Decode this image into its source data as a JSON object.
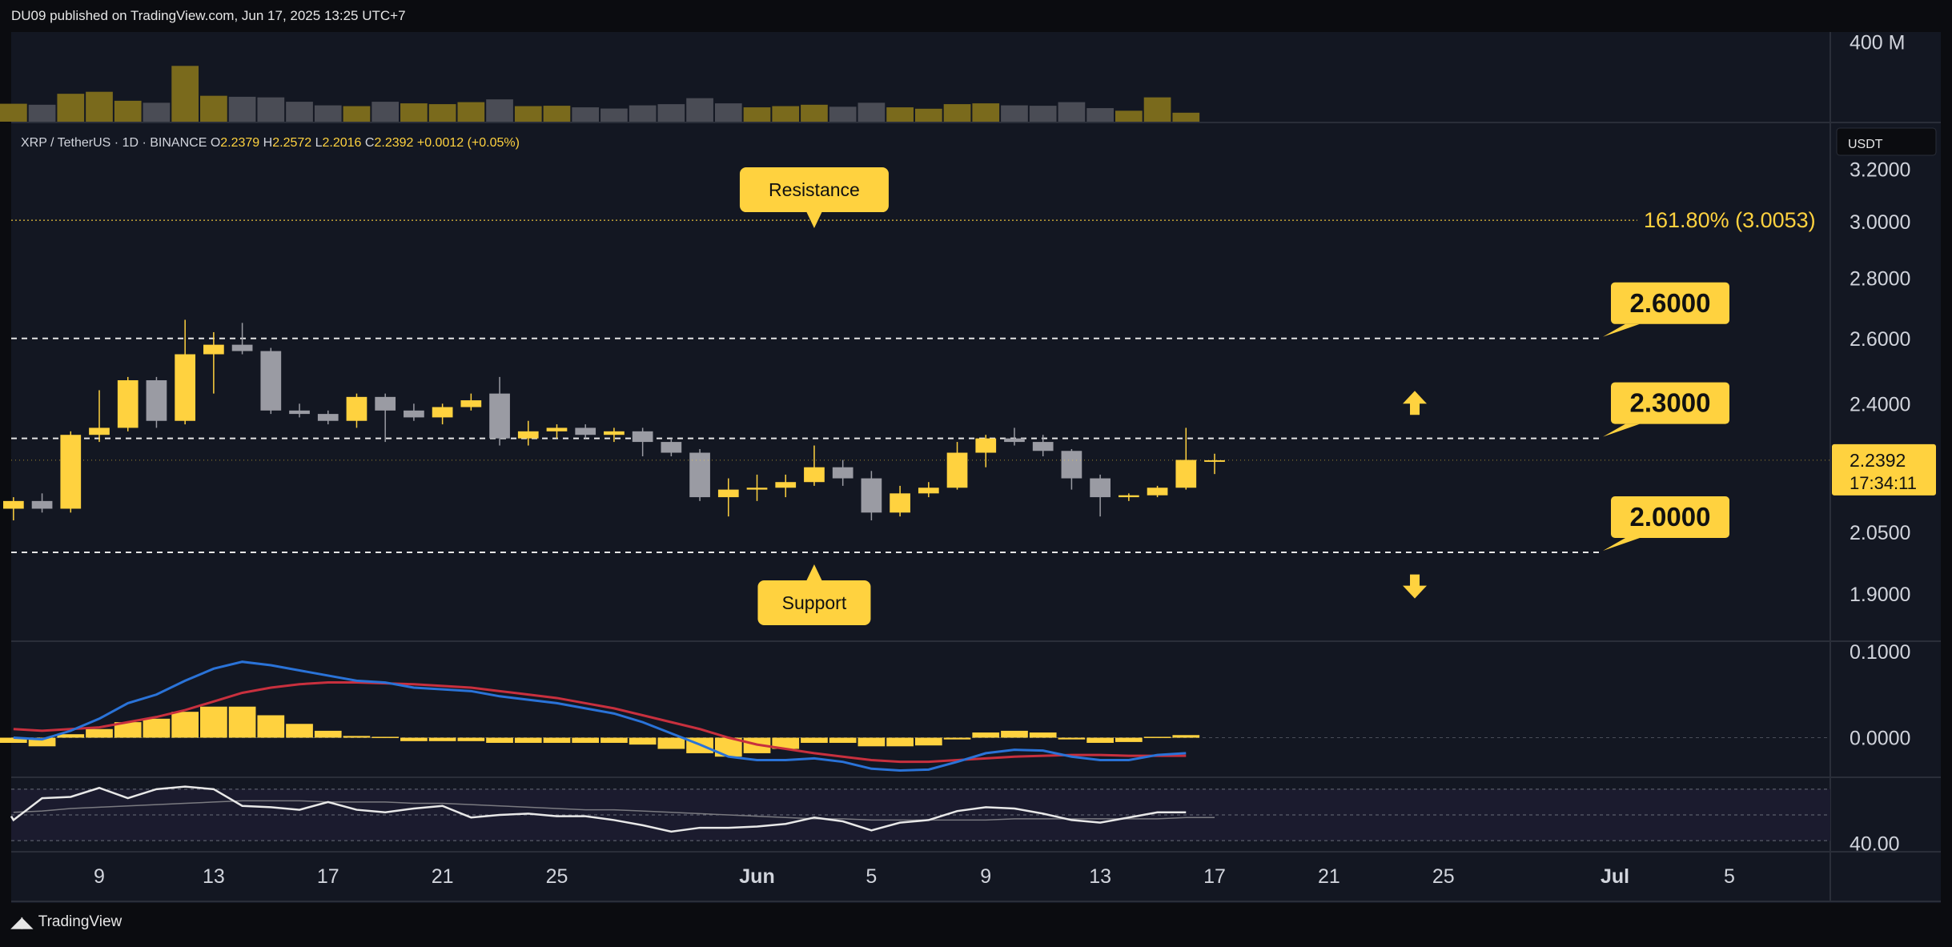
{
  "header": {
    "published": "DU09 published on TradingView.com, Jun 17, 2025 13:25 UTC+7"
  },
  "footer": {
    "brand": "TradingView",
    "logo_icon": "tradingview-logo-icon"
  },
  "colors": {
    "background": "#0b0c10",
    "panel": "#131722",
    "bull": "#ffd23f",
    "bear": "#9a9ba3",
    "volume_bull": "#7a6a1c",
    "volume_bear": "#4a4c55",
    "macd": "#2a73d8",
    "signal": "#c8303e",
    "rsi": "#e8e8e8",
    "rsi_ma": "#7a7a80",
    "rsi_band": "#1b1b2e",
    "label_bg": "#ffd23f"
  },
  "chart_data": [
    {
      "type": "candlestick",
      "symbol_line": {
        "pair": "XRP / TetherUS · 1D · BINANCE",
        "o_label": "O",
        "o": "2.2379",
        "h_label": "H",
        "h": "2.2572",
        "l_label": "L",
        "l": "2.2016",
        "c_label": "C",
        "c": "2.2392",
        "change": "+0.0012 (+0.05%)"
      },
      "currency_badge": "USDT",
      "y_ticks": [
        "3.2000",
        "3.0000",
        "2.8000",
        "2.6000",
        "2.4000",
        "2.2392",
        "2.0500",
        "1.9000"
      ],
      "x_ticks": [
        "9",
        "13",
        "17",
        "21",
        "25",
        "Jun",
        "5",
        "9",
        "13",
        "17",
        "21",
        "25",
        "Jul",
        "5"
      ],
      "x_tick_dates": [
        "2025-05-09",
        "2025-05-13",
        "2025-05-17",
        "2025-05-21",
        "2025-05-25",
        "2025-06-01",
        "2025-06-05",
        "2025-06-09",
        "2025-06-13",
        "2025-06-17",
        "2025-06-21",
        "2025-06-25",
        "2025-07-01",
        "2025-07-05"
      ],
      "last_price": "2.2392",
      "countdown": "17:34:11",
      "fib_label": "161.80% (3.0053)",
      "fib_level": 3.0053,
      "levels": [
        {
          "price": 2.6,
          "label": "2.6000"
        },
        {
          "price": 2.3,
          "label": "2.3000"
        },
        {
          "price": 2.0,
          "label": "2.0000"
        }
      ],
      "annotations": [
        {
          "text": "Resistance",
          "date": "2025-06-03",
          "price": 3.12,
          "pointer": "down"
        },
        {
          "text": "Support",
          "date": "2025-06-03",
          "price": 1.88,
          "pointer": "up"
        }
      ],
      "arrows": [
        {
          "icon": "up-arrow-icon",
          "date": "2025-06-24",
          "price": 2.4
        },
        {
          "icon": "down-arrow-icon",
          "date": "2025-06-24",
          "price": 1.92
        }
      ],
      "candles": [
        {
          "date": "2025-05-06",
          "o": 2.11,
          "h": 2.14,
          "l": 2.08,
          "c": 2.13
        },
        {
          "date": "2025-05-07",
          "o": 2.13,
          "h": 2.15,
          "l": 2.1,
          "c": 2.11
        },
        {
          "date": "2025-05-08",
          "o": 2.11,
          "h": 2.32,
          "l": 2.1,
          "c": 2.31
        },
        {
          "date": "2025-05-09",
          "o": 2.31,
          "h": 2.44,
          "l": 2.29,
          "c": 2.33
        },
        {
          "date": "2025-05-10",
          "o": 2.33,
          "h": 2.48,
          "l": 2.32,
          "c": 2.47
        },
        {
          "date": "2025-05-11",
          "o": 2.47,
          "h": 2.48,
          "l": 2.33,
          "c": 2.35
        },
        {
          "date": "2025-05-12",
          "o": 2.35,
          "h": 2.66,
          "l": 2.34,
          "c": 2.55
        },
        {
          "date": "2025-05-13",
          "o": 2.55,
          "h": 2.62,
          "l": 2.43,
          "c": 2.58
        },
        {
          "date": "2025-05-14",
          "o": 2.58,
          "h": 2.65,
          "l": 2.55,
          "c": 2.56
        },
        {
          "date": "2025-05-15",
          "o": 2.56,
          "h": 2.57,
          "l": 2.37,
          "c": 2.38
        },
        {
          "date": "2025-05-16",
          "o": 2.38,
          "h": 2.4,
          "l": 2.36,
          "c": 2.37
        },
        {
          "date": "2025-05-17",
          "o": 2.37,
          "h": 2.38,
          "l": 2.34,
          "c": 2.35
        },
        {
          "date": "2025-05-18",
          "o": 2.35,
          "h": 2.43,
          "l": 2.33,
          "c": 2.42
        },
        {
          "date": "2025-05-19",
          "o": 2.42,
          "h": 2.43,
          "l": 2.29,
          "c": 2.38
        },
        {
          "date": "2025-05-20",
          "o": 2.38,
          "h": 2.4,
          "l": 2.35,
          "c": 2.36
        },
        {
          "date": "2025-05-21",
          "o": 2.36,
          "h": 2.4,
          "l": 2.34,
          "c": 2.39
        },
        {
          "date": "2025-05-22",
          "o": 2.39,
          "h": 2.43,
          "l": 2.38,
          "c": 2.41
        },
        {
          "date": "2025-05-23",
          "o": 2.43,
          "h": 2.48,
          "l": 2.28,
          "c": 2.3
        },
        {
          "date": "2025-05-24",
          "o": 2.3,
          "h": 2.35,
          "l": 2.28,
          "c": 2.32
        },
        {
          "date": "2025-05-25",
          "o": 2.32,
          "h": 2.34,
          "l": 2.3,
          "c": 2.33
        },
        {
          "date": "2025-05-26",
          "o": 2.33,
          "h": 2.34,
          "l": 2.3,
          "c": 2.31
        },
        {
          "date": "2025-05-27",
          "o": 2.31,
          "h": 2.33,
          "l": 2.29,
          "c": 2.32
        },
        {
          "date": "2025-05-28",
          "o": 2.32,
          "h": 2.33,
          "l": 2.25,
          "c": 2.29
        },
        {
          "date": "2025-05-29",
          "o": 2.29,
          "h": 2.3,
          "l": 2.25,
          "c": 2.26
        },
        {
          "date": "2025-05-30",
          "o": 2.26,
          "h": 2.27,
          "l": 2.13,
          "c": 2.14
        },
        {
          "date": "2025-05-31",
          "o": 2.14,
          "h": 2.19,
          "l": 2.09,
          "c": 2.16
        },
        {
          "date": "2025-06-01",
          "o": 2.16,
          "h": 2.2,
          "l": 2.13,
          "c": 2.165
        },
        {
          "date": "2025-06-02",
          "o": 2.165,
          "h": 2.2,
          "l": 2.14,
          "c": 2.18
        },
        {
          "date": "2025-06-03",
          "o": 2.18,
          "h": 2.28,
          "l": 2.17,
          "c": 2.22
        },
        {
          "date": "2025-06-04",
          "o": 2.22,
          "h": 2.24,
          "l": 2.17,
          "c": 2.19
        },
        {
          "date": "2025-06-05",
          "o": 2.19,
          "h": 2.21,
          "l": 2.08,
          "c": 2.1
        },
        {
          "date": "2025-06-06",
          "o": 2.1,
          "h": 2.17,
          "l": 2.09,
          "c": 2.15
        },
        {
          "date": "2025-06-07",
          "o": 2.15,
          "h": 2.18,
          "l": 2.14,
          "c": 2.165
        },
        {
          "date": "2025-06-08",
          "o": 2.165,
          "h": 2.29,
          "l": 2.16,
          "c": 2.26
        },
        {
          "date": "2025-06-09",
          "o": 2.26,
          "h": 2.31,
          "l": 2.22,
          "c": 2.3
        },
        {
          "date": "2025-06-10",
          "o": 2.3,
          "h": 2.33,
          "l": 2.28,
          "c": 2.29
        },
        {
          "date": "2025-06-11",
          "o": 2.29,
          "h": 2.31,
          "l": 2.25,
          "c": 2.265
        },
        {
          "date": "2025-06-12",
          "o": 2.265,
          "h": 2.27,
          "l": 2.16,
          "c": 2.19
        },
        {
          "date": "2025-06-13",
          "o": 2.19,
          "h": 2.2,
          "l": 2.09,
          "c": 2.14
        },
        {
          "date": "2025-06-14",
          "o": 2.14,
          "h": 2.15,
          "l": 2.13,
          "c": 2.145
        },
        {
          "date": "2025-06-15",
          "o": 2.145,
          "h": 2.17,
          "l": 2.14,
          "c": 2.165
        },
        {
          "date": "2025-06-16",
          "o": 2.165,
          "h": 2.33,
          "l": 2.16,
          "c": 2.24
        },
        {
          "date": "2025-06-17",
          "o": 2.2379,
          "h": 2.2572,
          "l": 2.2016,
          "c": 2.2392
        }
      ]
    },
    {
      "type": "bar",
      "name": "volume",
      "y_ticks": [
        "400 M"
      ],
      "ylim": [
        0,
        450
      ],
      "values": [
        90,
        85,
        140,
        150,
        105,
        95,
        280,
        130,
        125,
        122,
        100,
        82,
        78,
        100,
        92,
        88,
        98,
        112,
        78,
        80,
        72,
        66,
        82,
        88,
        118,
        92,
        72,
        78,
        85,
        75,
        95,
        72,
        65,
        88,
        92,
        82,
        80,
        98,
        68,
        55,
        122,
        45
      ],
      "colors": [
        "bull",
        "bear",
        "bull",
        "bull",
        "bull",
        "bear",
        "bull",
        "bull",
        "bear",
        "bear",
        "bear",
        "bear",
        "bull",
        "bear",
        "bull",
        "bull",
        "bull",
        "bear",
        "bull",
        "bull",
        "bear",
        "bear",
        "bear",
        "bear",
        "bear",
        "bear",
        "bull",
        "bull",
        "bull",
        "bear",
        "bear",
        "bull",
        "bull",
        "bull",
        "bull",
        "bear",
        "bear",
        "bear",
        "bear",
        "bull",
        "bull",
        "bull"
      ]
    },
    {
      "type": "line",
      "name": "macd",
      "y_ticks": [
        "0.1000",
        "0.0000"
      ],
      "ylim": [
        -0.045,
        0.11
      ],
      "macd": [
        0.0,
        -0.002,
        0.008,
        0.022,
        0.04,
        0.05,
        0.066,
        0.08,
        0.088,
        0.084,
        0.078,
        0.072,
        0.066,
        0.064,
        0.058,
        0.056,
        0.054,
        0.048,
        0.044,
        0.04,
        0.034,
        0.028,
        0.018,
        0.005,
        -0.008,
        -0.022,
        -0.026,
        -0.026,
        -0.024,
        -0.028,
        -0.036,
        -0.038,
        -0.037,
        -0.028,
        -0.018,
        -0.014,
        -0.015,
        -0.022,
        -0.026,
        -0.026,
        -0.02,
        -0.018
      ],
      "signal": [
        0.01,
        0.008,
        0.01,
        0.012,
        0.018,
        0.024,
        0.032,
        0.042,
        0.052,
        0.058,
        0.062,
        0.064,
        0.064,
        0.063,
        0.062,
        0.06,
        0.058,
        0.054,
        0.05,
        0.046,
        0.04,
        0.034,
        0.026,
        0.018,
        0.01,
        0.0,
        -0.008,
        -0.013,
        -0.018,
        -0.022,
        -0.026,
        -0.028,
        -0.028,
        -0.026,
        -0.024,
        -0.022,
        -0.021,
        -0.02,
        -0.02,
        -0.021,
        -0.021,
        -0.021
      ],
      "histogram": [
        -0.006,
        -0.01,
        0.004,
        0.01,
        0.018,
        0.022,
        0.03,
        0.036,
        0.036,
        0.026,
        0.016,
        0.008,
        0.002,
        0.001,
        -0.004,
        -0.004,
        -0.004,
        -0.006,
        -0.006,
        -0.006,
        -0.006,
        -0.006,
        -0.008,
        -0.013,
        -0.018,
        -0.022,
        -0.018,
        -0.013,
        -0.006,
        -0.006,
        -0.01,
        -0.01,
        -0.009,
        -0.002,
        0.006,
        0.008,
        0.006,
        -0.002,
        -0.006,
        -0.005,
        0.001,
        0.003
      ]
    },
    {
      "type": "line",
      "name": "rsi",
      "y_ticks": [
        "40.00"
      ],
      "ylim": [
        22,
        78
      ],
      "band": [
        30,
        70
      ],
      "rsi": [
        49,
        46,
        63,
        64,
        71,
        63,
        70,
        72,
        70,
        57,
        56,
        54,
        60,
        54,
        52,
        55,
        57,
        48,
        50,
        51,
        49,
        49,
        46,
        42,
        37,
        40,
        40,
        41,
        43,
        48,
        45,
        38,
        44,
        46,
        53,
        56,
        55,
        51,
        46,
        44,
        48,
        52,
        52
      ],
      "rsi_ma": [
        52,
        53,
        55,
        56,
        57,
        58,
        59,
        60,
        61,
        61,
        61,
        60,
        60,
        60,
        59,
        59,
        58,
        57,
        56,
        55,
        54,
        54,
        53,
        52,
        51,
        50,
        49,
        48,
        47,
        47,
        46,
        46,
        46,
        46,
        46,
        47,
        47,
        47,
        47,
        47,
        47,
        48,
        48
      ]
    }
  ]
}
